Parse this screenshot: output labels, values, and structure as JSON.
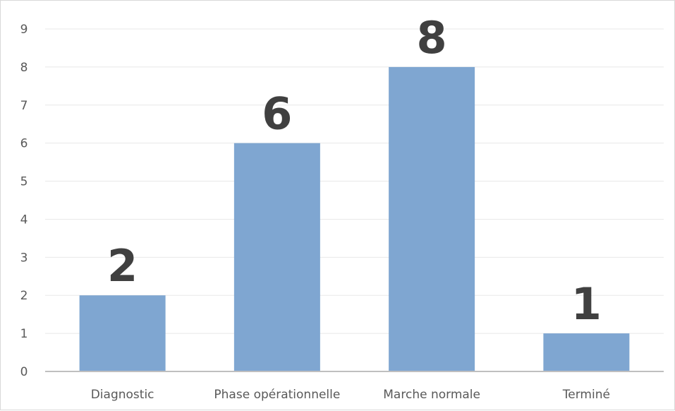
{
  "chart_data": {
    "type": "bar",
    "categories": [
      "Diagnostic",
      "Phase opérationnelle",
      "Marche normale",
      "Terminé"
    ],
    "values": [
      2,
      6,
      8,
      1
    ],
    "data_labels": [
      "2",
      "6",
      "8",
      "1"
    ],
    "y_ticks": [
      "0",
      "1",
      "2",
      "3",
      "4",
      "5",
      "6",
      "7",
      "8",
      "9"
    ],
    "ylim": [
      0,
      9
    ],
    "grid": true,
    "legend": "none",
    "bar_color": "#7fa6d1"
  }
}
